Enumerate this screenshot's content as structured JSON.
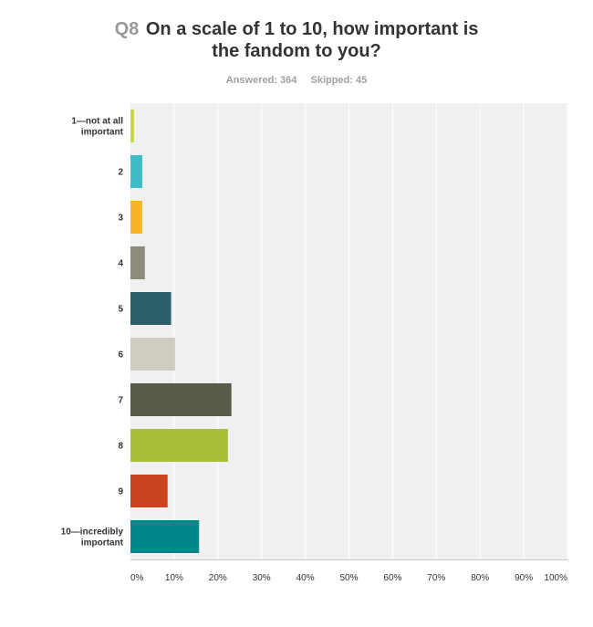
{
  "header": {
    "question_number": "Q8",
    "question_text": "On a scale of 1 to 10, how important is the fandom to you?",
    "answered": "Answered: 364",
    "skipped": "Skipped: 45"
  },
  "colors": {
    "plot_background": "#f0f0f0",
    "gridline": "#ffffff",
    "axis": "#c8c8c8"
  },
  "chart_data": {
    "type": "bar",
    "orientation": "horizontal",
    "title": "On a scale of 1 to 10, how important is the fandom to you?",
    "categories": [
      [
        "1—not at all",
        "important"
      ],
      [
        "2"
      ],
      [
        "3"
      ],
      [
        "4"
      ],
      [
        "5"
      ],
      [
        "6"
      ],
      [
        "7"
      ],
      [
        "8"
      ],
      [
        "9"
      ],
      [
        "10—incredibly",
        "important"
      ]
    ],
    "values": [
      0.8,
      2.7,
      2.7,
      3.3,
      9.3,
      10.2,
      23.1,
      22.3,
      8.5,
      15.7
    ],
    "bar_colors": [
      "#c8d83c",
      "#3dbec6",
      "#f7b429",
      "#8c8b7c",
      "#2d5f6b",
      "#cfcdc1",
      "#5a5a4a",
      "#a8bd38",
      "#c9441e",
      "#00878a"
    ],
    "xlim": [
      0,
      100
    ],
    "xticks": [
      "0%",
      "10%",
      "20%",
      "30%",
      "40%",
      "50%",
      "60%",
      "70%",
      "80%",
      "90%",
      "100%"
    ],
    "grid": true,
    "legend": "none"
  }
}
